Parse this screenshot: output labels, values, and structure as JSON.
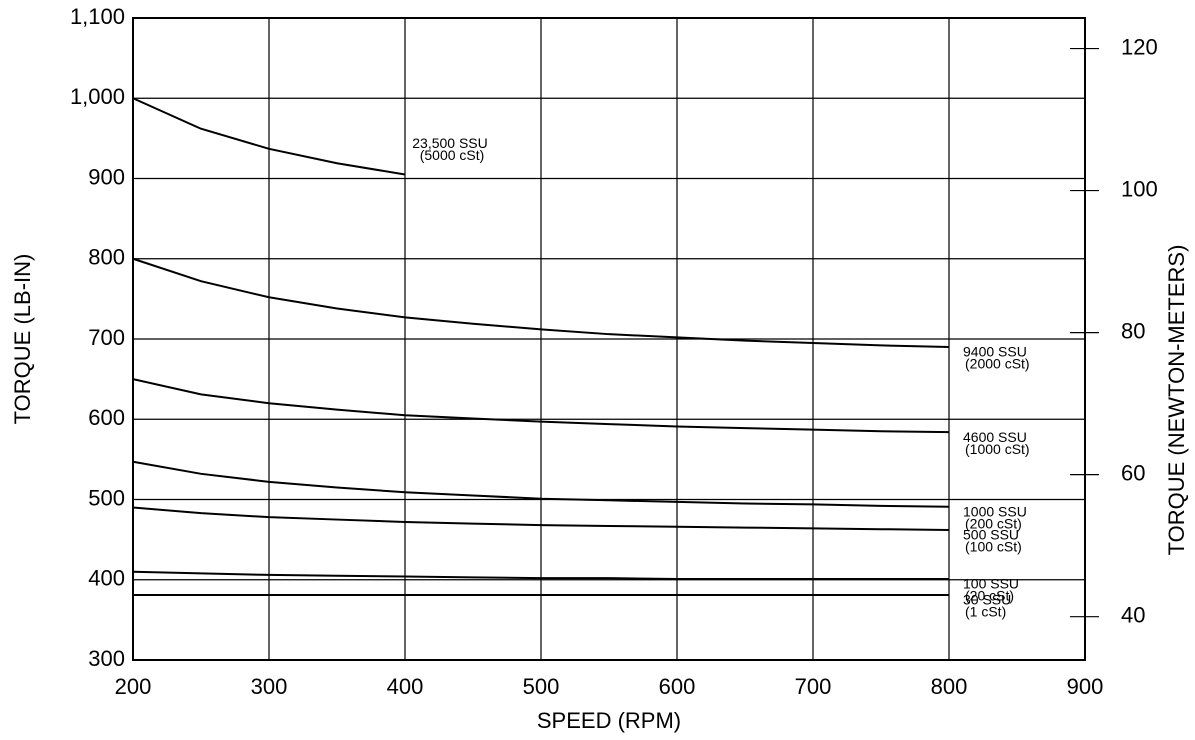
{
  "chart_data": {
    "type": "line",
    "x_label": "SPEED (RPM)",
    "y_label": "TORQUE (LB-IN)",
    "y2_label": "TORQUE (NEWTON-METERS)",
    "x": [
      200,
      250,
      300,
      350,
      400,
      450,
      500,
      550,
      600,
      650,
      700,
      750,
      800
    ],
    "xlim": [
      200,
      900
    ],
    "xticks": [
      200,
      300,
      400,
      500,
      600,
      700,
      800,
      900
    ],
    "ylim": [
      300,
      1100
    ],
    "yticks": [
      300,
      400,
      500,
      600,
      700,
      800,
      900,
      {
        "value": 1000,
        "label": "1,000"
      },
      {
        "value": 1100,
        "label": "1,100"
      }
    ],
    "y2lim": [
      33.9,
      124.3
    ],
    "y2ticks": [
      40,
      60,
      80,
      100,
      120
    ],
    "grid": true,
    "series": [
      {
        "name": "23,500 SSU",
        "sublabel": "(5000 cSt)",
        "color": "#000000",
        "values": [
          1000,
          962,
          937,
          919,
          905,
          null,
          null,
          null,
          null,
          null,
          null,
          null,
          null
        ]
      },
      {
        "name": "9400 SSU",
        "sublabel": "(2000 cSt)",
        "color": "#000000",
        "values": [
          800,
          772,
          752,
          738,
          727,
          719,
          712,
          706,
          702,
          698,
          695,
          692,
          690
        ]
      },
      {
        "name": "4600 SSU",
        "sublabel": "(1000 cSt)",
        "color": "#000000",
        "values": [
          650,
          631,
          620,
          612,
          605,
          601,
          597,
          594,
          591,
          589,
          587,
          585,
          584
        ]
      },
      {
        "name": "1000 SSU",
        "sublabel": "(200 cSt)",
        "color": "#000000",
        "values": [
          547,
          532,
          522,
          515,
          509,
          505,
          501,
          499,
          497,
          495,
          494,
          492,
          491
        ]
      },
      {
        "name": "500 SSU",
        "sublabel": "(100 cSt)",
        "color": "#000000",
        "values": [
          490,
          483,
          478,
          475,
          472,
          470,
          468,
          467,
          466,
          465,
          464,
          463,
          462
        ]
      },
      {
        "name": "100 SSU",
        "sublabel": "(20 cSt)",
        "color": "#000000",
        "values": [
          410,
          408,
          406,
          405,
          404,
          403,
          402,
          402,
          401,
          401,
          401,
          401,
          401
        ]
      },
      {
        "name": "30 SSU",
        "sublabel": "(1 cSt)",
        "color": "#000000",
        "values": [
          381,
          381,
          381,
          381,
          381,
          381,
          381,
          381,
          381,
          381,
          381,
          381,
          381
        ]
      }
    ]
  }
}
